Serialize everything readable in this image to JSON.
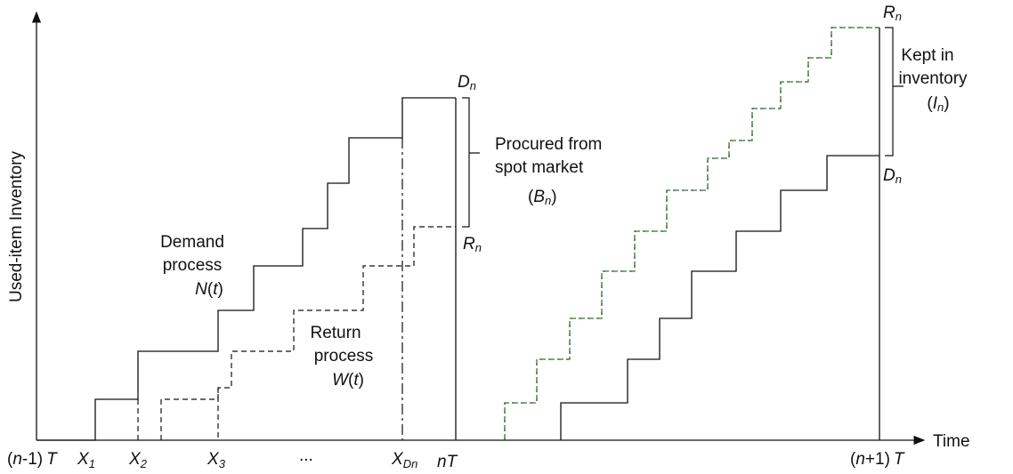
{
  "axes": {
    "y_label": "Used-item Inventory",
    "x_label": "Time"
  },
  "ticks": {
    "origin": {
      "open": "(",
      "var": "n",
      "rest": "-1)",
      "T": "T"
    },
    "x1": {
      "X": "X",
      "sub": "1"
    },
    "x2": {
      "X": "X",
      "sub": "2"
    },
    "x3": {
      "X": "X",
      "sub": "3"
    },
    "ellipsis": "...",
    "xdn": {
      "X": "X",
      "sub": "Dn"
    },
    "nT": "nT",
    "end": {
      "open": "(",
      "var": "n",
      "rest": "+1)",
      "T": "T"
    }
  },
  "labels": {
    "demand_line1": "Demand",
    "demand_line2": "process",
    "demand_fn": {
      "N": "N",
      "open": "(",
      "t": "t",
      "close": ")"
    },
    "return_line1": "Return",
    "return_line2": "process",
    "return_fn": {
      "W": "W",
      "open": "(",
      "t": "t",
      "close": ")"
    },
    "procured_line1": "Procured from",
    "procured_line2": "spot market",
    "procured_var": {
      "open": "(",
      "B": "B",
      "sub": "n",
      "close": ")"
    },
    "kept_line1": "Kept in",
    "kept_line2": "inventory",
    "kept_var": {
      "open": "(",
      "I": "I",
      "sub": "n",
      "close": ")"
    },
    "dn_left": {
      "D": "D",
      "sub": "n"
    },
    "rn_left": {
      "R": "R",
      "sub": "n"
    },
    "rn_right": {
      "R": "R",
      "sub": "n"
    },
    "dn_right": {
      "D": "D",
      "sub": "n"
    }
  },
  "colors": {
    "ink": "#111111",
    "return_right": "#2f7a2f"
  }
}
